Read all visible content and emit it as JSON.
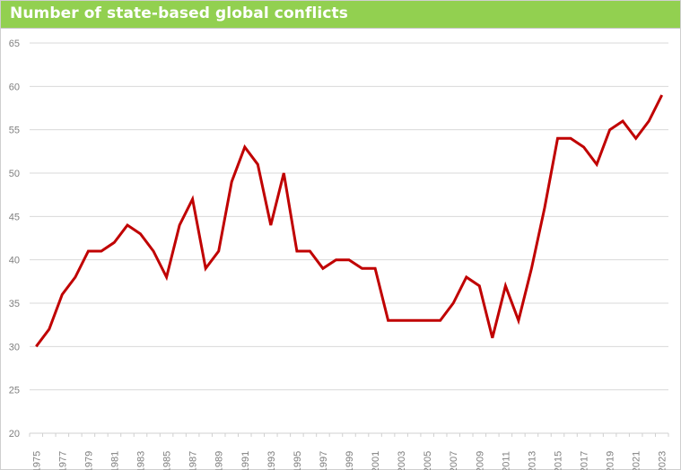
{
  "chart_data": {
    "type": "line",
    "title": "Number of state-based global conflicts",
    "xlabel": "",
    "ylabel": "",
    "ylim": [
      20,
      65
    ],
    "yticks": [
      20,
      25,
      30,
      35,
      40,
      45,
      50,
      55,
      60,
      65
    ],
    "grid": true,
    "x": [
      1975,
      1976,
      1977,
      1978,
      1979,
      1980,
      1981,
      1982,
      1983,
      1984,
      1985,
      1986,
      1987,
      1988,
      1989,
      1990,
      1991,
      1992,
      1993,
      1994,
      1995,
      1996,
      1997,
      1998,
      1999,
      2000,
      2001,
      2002,
      2003,
      2004,
      2005,
      2006,
      2007,
      2008,
      2009,
      2010,
      2011,
      2012,
      2013,
      2014,
      2015,
      2016,
      2017,
      2018,
      2019,
      2020,
      2021,
      2022,
      2023
    ],
    "xtick_labels": [
      "1975",
      "1977",
      "1979",
      "1981",
      "1983",
      "1985",
      "1987",
      "1989",
      "1991",
      "1993",
      "1995",
      "1997",
      "1999",
      "2001",
      "2003",
      "2005",
      "2007",
      "2009",
      "2011",
      "2013",
      "2015",
      "2017",
      "2019",
      "2021",
      "2023"
    ],
    "series": [
      {
        "values": [
          30,
          32,
          36,
          38,
          41,
          41,
          42,
          44,
          43,
          41,
          38,
          44,
          47,
          39,
          41,
          49,
          53,
          51,
          44,
          50,
          41,
          41,
          39,
          40,
          40,
          39,
          39,
          33,
          33,
          33,
          33,
          33,
          35,
          38,
          37,
          31,
          37,
          33,
          39,
          46,
          54,
          54,
          53,
          51,
          55,
          56,
          54,
          56,
          59
        ],
        "color": "#c00000"
      }
    ],
    "colors": {
      "title_bar": "#92d050",
      "grid": "#d9d9d9"
    }
  }
}
